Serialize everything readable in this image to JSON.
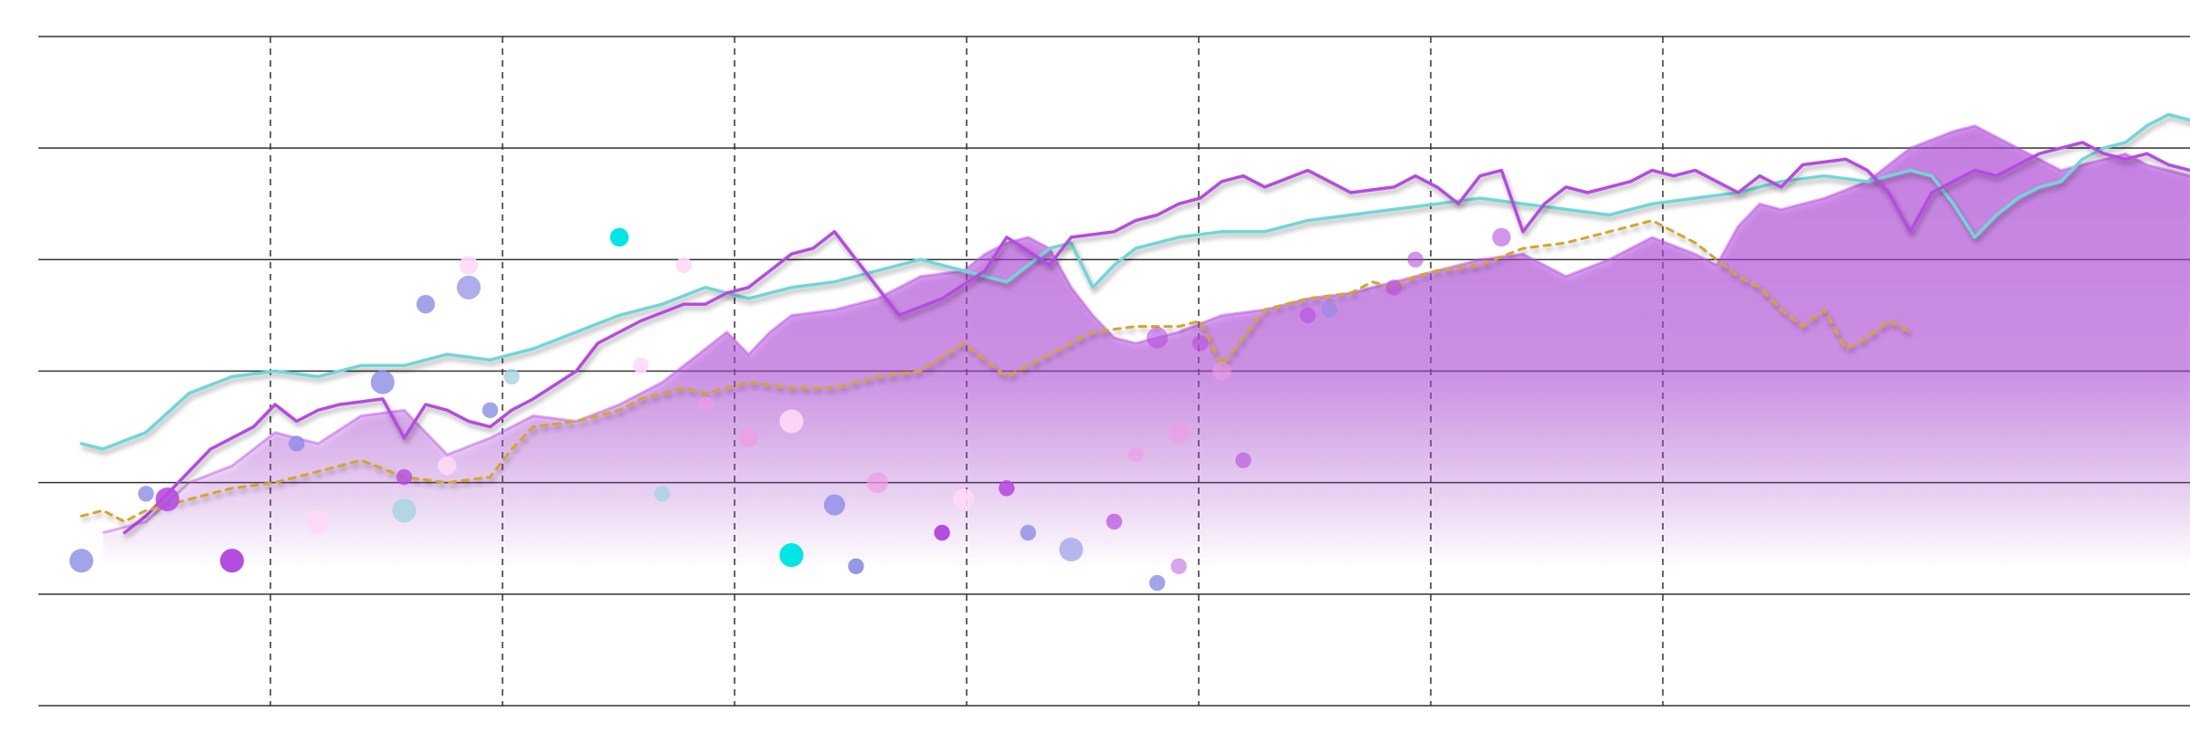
{
  "chart_data": {
    "type": "line",
    "title": "",
    "xlabel": "",
    "ylabel": "",
    "xlim": [
      0,
      100
    ],
    "ylim": [
      0,
      6
    ],
    "grid": {
      "horizontal": true,
      "vertical": true,
      "vertical_style": "dashed"
    },
    "legend": "none",
    "series": [
      {
        "kind": "area",
        "color": "#b54ce0",
        "x": [
          3,
          5,
          7,
          9,
          11,
          13,
          15,
          17,
          19,
          21,
          23,
          25,
          27,
          29,
          31,
          32,
          33,
          34,
          35,
          37,
          39,
          41,
          43,
          44,
          45,
          46,
          47,
          48,
          49,
          50,
          51,
          53,
          55,
          57,
          59,
          61,
          63,
          65,
          67,
          69,
          71,
          73,
          75,
          77,
          78,
          79,
          80,
          81,
          83,
          85,
          87,
          89,
          90,
          91,
          92,
          93,
          94,
          95,
          96,
          97,
          98,
          99,
          100
        ],
        "y": [
          1.55,
          1.65,
          2.0,
          2.15,
          2.45,
          2.35,
          2.6,
          2.65,
          2.25,
          2.4,
          2.6,
          2.55,
          2.7,
          2.9,
          3.2,
          3.35,
          3.15,
          3.35,
          3.5,
          3.55,
          3.65,
          3.85,
          3.9,
          4.05,
          4.15,
          4.2,
          4.1,
          3.75,
          3.5,
          3.3,
          3.25,
          3.35,
          3.5,
          3.55,
          3.65,
          3.7,
          3.8,
          3.9,
          4.0,
          4.05,
          3.85,
          4.0,
          4.2,
          4.05,
          3.95,
          4.3,
          4.5,
          4.45,
          4.55,
          4.7,
          5.0,
          5.15,
          5.2,
          5.1,
          5.0,
          4.9,
          4.8,
          4.85,
          4.9,
          4.95,
          4.85,
          4.8,
          4.75
        ]
      },
      {
        "kind": "line",
        "color": "#6fd6d6",
        "x": [
          2,
          3,
          5,
          7,
          9,
          11,
          13,
          15,
          17,
          19,
          21,
          23,
          25,
          27,
          29,
          31,
          33,
          35,
          37,
          39,
          41,
          43,
          45,
          47,
          48,
          49,
          50,
          51,
          53,
          55,
          57,
          59,
          61,
          63,
          65,
          67,
          69,
          71,
          73,
          74,
          75,
          77,
          79,
          81,
          83,
          85,
          87,
          88,
          89,
          90,
          91,
          92,
          93,
          94,
          95,
          96,
          97,
          98,
          99,
          100
        ],
        "y": [
          2.35,
          2.3,
          2.45,
          2.8,
          2.95,
          3.0,
          2.95,
          3.05,
          3.05,
          3.15,
          3.1,
          3.2,
          3.35,
          3.5,
          3.6,
          3.75,
          3.65,
          3.75,
          3.8,
          3.9,
          4.0,
          3.9,
          3.8,
          4.1,
          4.15,
          3.75,
          3.95,
          4.1,
          4.2,
          4.25,
          4.25,
          4.35,
          4.4,
          4.45,
          4.5,
          4.55,
          4.5,
          4.45,
          4.4,
          4.45,
          4.5,
          4.55,
          4.6,
          4.7,
          4.75,
          4.7,
          4.8,
          4.75,
          4.5,
          4.2,
          4.4,
          4.55,
          4.65,
          4.7,
          4.9,
          5.0,
          5.05,
          5.2,
          5.3,
          5.25
        ]
      },
      {
        "kind": "line",
        "color": "#b54ce0",
        "x": [
          4,
          5,
          6,
          7,
          8,
          10,
          11,
          12,
          13,
          14,
          16,
          17,
          18,
          19,
          20,
          21,
          22,
          23,
          25,
          26,
          28,
          30,
          31,
          32,
          33,
          34,
          35,
          36,
          37,
          38,
          40,
          42,
          44,
          45,
          47,
          48,
          50,
          51,
          52,
          53,
          54,
          55,
          56,
          57,
          59,
          61,
          63,
          64,
          65,
          66,
          67,
          68,
          69,
          70,
          71,
          72,
          73,
          74,
          75,
          76,
          77,
          78,
          79,
          80,
          81,
          82,
          84,
          85,
          86,
          87,
          88,
          89,
          90,
          91,
          92,
          93,
          94,
          95,
          96,
          97,
          98,
          99,
          100
        ],
        "y": [
          1.55,
          1.7,
          1.9,
          2.1,
          2.3,
          2.5,
          2.7,
          2.55,
          2.65,
          2.7,
          2.75,
          2.4,
          2.7,
          2.65,
          2.55,
          2.5,
          2.65,
          2.75,
          3.0,
          3.25,
          3.45,
          3.6,
          3.6,
          3.7,
          3.75,
          3.9,
          4.05,
          4.1,
          4.25,
          4.0,
          3.5,
          3.65,
          3.9,
          4.2,
          3.95,
          4.2,
          4.25,
          4.35,
          4.4,
          4.5,
          4.55,
          4.7,
          4.75,
          4.65,
          4.8,
          4.6,
          4.65,
          4.75,
          4.65,
          4.5,
          4.75,
          4.8,
          4.25,
          4.5,
          4.65,
          4.6,
          4.65,
          4.7,
          4.8,
          4.75,
          4.8,
          4.7,
          4.6,
          4.75,
          4.65,
          4.85,
          4.9,
          4.8,
          4.6,
          4.25,
          4.6,
          4.7,
          4.8,
          4.75,
          4.85,
          4.95,
          5.0,
          5.05,
          4.95,
          4.9,
          4.95,
          4.85,
          4.8
        ]
      },
      {
        "kind": "line",
        "style": "dashed",
        "color": "#d4a62a",
        "x": [
          2,
          3,
          4,
          5,
          7,
          9,
          11,
          13,
          15,
          17,
          19,
          21,
          22,
          23,
          25,
          27,
          28,
          29,
          30,
          31,
          33,
          35,
          37,
          39,
          41,
          43,
          45,
          47,
          49,
          51,
          53,
          54,
          55,
          57,
          59,
          61,
          62,
          63,
          64,
          65,
          67,
          69,
          71,
          73,
          75,
          77,
          78,
          79,
          80,
          81,
          82,
          83,
          84,
          85,
          86,
          87
        ],
        "y": [
          1.7,
          1.75,
          1.65,
          1.75,
          1.85,
          1.95,
          2.0,
          2.1,
          2.2,
          2.05,
          2.0,
          2.05,
          2.3,
          2.5,
          2.55,
          2.65,
          2.75,
          2.8,
          2.85,
          2.8,
          2.9,
          2.85,
          2.85,
          2.95,
          3.0,
          3.25,
          2.95,
          3.15,
          3.35,
          3.4,
          3.4,
          3.45,
          3.05,
          3.55,
          3.65,
          3.7,
          3.8,
          3.75,
          3.85,
          3.9,
          3.95,
          4.1,
          4.15,
          4.25,
          4.35,
          4.15,
          4.0,
          3.85,
          3.75,
          3.55,
          3.4,
          3.55,
          3.2,
          3.3,
          3.45,
          3.35
        ]
      }
    ],
    "scatter": {
      "x": [
        2,
        9,
        5,
        6,
        12,
        13,
        16,
        17,
        17,
        18,
        19,
        20,
        20,
        21,
        22,
        27,
        28,
        29,
        30,
        31,
        33,
        35,
        35,
        37,
        38,
        39,
        42,
        43,
        45,
        46,
        48,
        50,
        51,
        52,
        52,
        53,
        53,
        54,
        55,
        56,
        59,
        60,
        63,
        64,
        68
      ],
      "y": [
        1.3,
        1.3,
        1.9,
        1.85,
        2.35,
        1.65,
        2.9,
        1.75,
        2.05,
        3.6,
        2.15,
        3.95,
        3.75,
        2.65,
        2.95,
        4.2,
        3.05,
        1.9,
        3.95,
        2.7,
        2.4,
        1.35,
        2.55,
        1.8,
        1.25,
        2.0,
        1.55,
        1.85,
        1.95,
        1.55,
        1.4,
        1.65,
        2.25,
        3.3,
        1.1,
        2.45,
        1.25,
        3.25,
        3.0,
        2.2,
        3.5,
        3.55,
        3.75,
        4.0,
        4.2
      ],
      "r": [
        9,
        9,
        6,
        9,
        6,
        9,
        9,
        9,
        6,
        7,
        7,
        7,
        9,
        6,
        6,
        7,
        6,
        6,
        6,
        6,
        7,
        9,
        9,
        8,
        6,
        8,
        6,
        8,
        6,
        6,
        9,
        6,
        6,
        8,
        6,
        8,
        6,
        6,
        7,
        6,
        6,
        6,
        6,
        6,
        7
      ],
      "color": [
        "#8c8ce6",
        "#b54ce0",
        "#8c8ce6",
        "#b54ce0",
        "#8c8ce6",
        "#ffd9f5",
        "#8c8ce6",
        "#a5d5e0",
        "#b54ce0",
        "#8c8ce6",
        "#ffd9f5",
        "#ffd9f5",
        "#8c8ce6",
        "#8c8ce6",
        "#a5d5e0",
        "#00e5e5",
        "#ffd9f5",
        "#a5d5e0",
        "#ffd9f5",
        "#ee9de6",
        "#ee9de6",
        "#00e5e5",
        "#ffd9f5",
        "#8c8ce6",
        "#8c8ce6",
        "#ee9de6",
        "#b54ce0",
        "#ffd9f5",
        "#b54ce0",
        "#8c8ce6",
        "#8c8ce6",
        "#b54ce0",
        "#ee9de6",
        "#b54ce0",
        "#8c8ce6",
        "#ee9de6",
        "#b54ce0",
        "#b54ce0",
        "#ee9de6",
        "#b54ce0",
        "#b54ce0",
        "#8c8ce6",
        "#b54ce0",
        "#b54ce0",
        "#b54ce0"
      ],
      "alpha": [
        0.8,
        1.0,
        0.8,
        0.9,
        0.8,
        0.9,
        0.8,
        0.8,
        0.8,
        0.8,
        0.9,
        0.9,
        0.7,
        0.8,
        0.8,
        1.0,
        0.9,
        0.8,
        0.9,
        0.7,
        0.8,
        1.0,
        0.9,
        0.8,
        0.9,
        0.7,
        1.0,
        0.9,
        0.9,
        0.8,
        0.6,
        0.7,
        0.6,
        0.6,
        0.8,
        0.7,
        0.5,
        0.6,
        0.6,
        0.6,
        0.6,
        0.6,
        0.6,
        0.6,
        0.6
      ]
    }
  }
}
